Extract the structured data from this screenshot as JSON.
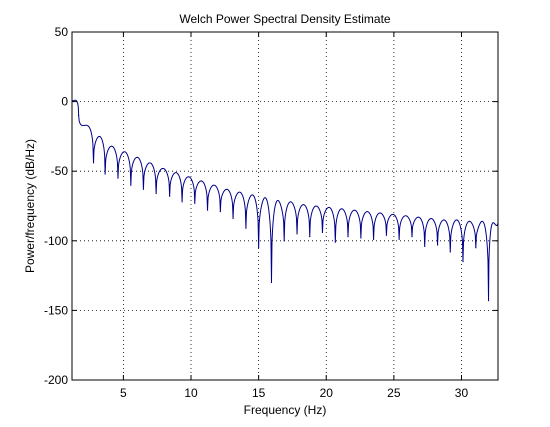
{
  "chart_data": {
    "type": "line",
    "title": "Welch Power Spectral Density Estimate",
    "xlabel": "Frequency (Hz)",
    "ylabel": "Power/frequency (dB/Hz)",
    "xlim": [
      1.2,
      32.7
    ],
    "ylim": [
      -200,
      50
    ],
    "grid": true,
    "x_ticks": [
      5,
      10,
      15,
      20,
      25,
      30
    ],
    "y_ticks": [
      50,
      0,
      -50,
      -100,
      -150,
      -200
    ],
    "series": [
      {
        "color": "#00008b",
        "lobes": [
          {
            "x_start": 1.2,
            "x_end": 1.69,
            "peak": 1
          },
          {
            "x_start": 1.69,
            "x_end": 2.79,
            "peak": -17
          },
          {
            "x_start": 2.79,
            "x_end": 3.65,
            "peak": -25
          },
          {
            "x_start": 3.65,
            "x_end": 4.6,
            "peak": -32
          },
          {
            "x_start": 4.6,
            "x_end": 5.55,
            "peak": -36
          },
          {
            "x_start": 5.55,
            "x_end": 6.48,
            "peak": -40
          },
          {
            "x_start": 6.48,
            "x_end": 7.42,
            "peak": -44
          },
          {
            "x_start": 7.42,
            "x_end": 8.42,
            "peak": -48
          },
          {
            "x_start": 8.42,
            "x_end": 9.34,
            "peak": -51
          },
          {
            "x_start": 9.34,
            "x_end": 10.28,
            "peak": -54
          },
          {
            "x_start": 10.28,
            "x_end": 11.22,
            "peak": -57
          },
          {
            "x_start": 11.22,
            "x_end": 12.17,
            "peak": -60
          },
          {
            "x_start": 12.17,
            "x_end": 13.11,
            "peak": -63
          },
          {
            "x_start": 13.11,
            "x_end": 14.06,
            "peak": -65
          },
          {
            "x_start": 14.06,
            "x_end": 15,
            "peak": -67
          },
          {
            "x_start": 15,
            "x_end": 15.95,
            "peak": -69
          },
          {
            "x_start": 15.95,
            "x_end": 16.89,
            "peak": -71
          },
          {
            "x_start": 16.89,
            "x_end": 17.84,
            "peak": -72
          },
          {
            "x_start": 17.84,
            "x_end": 18.78,
            "peak": -74
          },
          {
            "x_start": 18.78,
            "x_end": 19.72,
            "peak": -75
          },
          {
            "x_start": 19.72,
            "x_end": 20.67,
            "peak": -76
          },
          {
            "x_start": 20.67,
            "x_end": 21.61,
            "peak": -77
          },
          {
            "x_start": 21.61,
            "x_end": 22.56,
            "peak": -78
          },
          {
            "x_start": 22.56,
            "x_end": 23.5,
            "peak": -79
          },
          {
            "x_start": 23.5,
            "x_end": 24.45,
            "peak": -80
          },
          {
            "x_start": 24.45,
            "x_end": 25.39,
            "peak": -81
          },
          {
            "x_start": 25.39,
            "x_end": 26.34,
            "peak": -82
          },
          {
            "x_start": 26.34,
            "x_end": 27.28,
            "peak": -83
          },
          {
            "x_start": 27.28,
            "x_end": 28.23,
            "peak": -84
          },
          {
            "x_start": 28.23,
            "x_end": 29.17,
            "peak": -85
          },
          {
            "x_start": 29.17,
            "x_end": 30.11,
            "peak": -85
          },
          {
            "x_start": 30.11,
            "x_end": 31.06,
            "peak": -86
          },
          {
            "x_start": 31.06,
            "x_end": 32,
            "peak": -86
          },
          {
            "x_start": 32,
            "x_end": 32.7,
            "peak": -87
          }
        ],
        "nulls": [
          {
            "x": 1.69,
            "value": -10
          },
          {
            "x": 2.79,
            "value": -44
          },
          {
            "x": 3.65,
            "value": -52
          },
          {
            "x": 4.6,
            "value": -55
          },
          {
            "x": 5.55,
            "value": -60
          },
          {
            "x": 6.48,
            "value": -63
          },
          {
            "x": 7.42,
            "value": -66
          },
          {
            "x": 8.42,
            "value": -68
          },
          {
            "x": 9.34,
            "value": -72
          },
          {
            "x": 10.28,
            "value": -73
          },
          {
            "x": 11.22,
            "value": -78
          },
          {
            "x": 12.17,
            "value": -79
          },
          {
            "x": 13.11,
            "value": -84
          },
          {
            "x": 14.06,
            "value": -91
          },
          {
            "x": 15,
            "value": -105
          },
          {
            "x": 15.95,
            "value": -130
          },
          {
            "x": 16.89,
            "value": -100
          },
          {
            "x": 17.84,
            "value": -95
          },
          {
            "x": 18.78,
            "value": -97
          },
          {
            "x": 19.72,
            "value": -94
          },
          {
            "x": 20.67,
            "value": -101
          },
          {
            "x": 21.61,
            "value": -97
          },
          {
            "x": 22.56,
            "value": -98
          },
          {
            "x": 23.5,
            "value": -99
          },
          {
            "x": 24.45,
            "value": -96
          },
          {
            "x": 25.39,
            "value": -99
          },
          {
            "x": 26.34,
            "value": -97
          },
          {
            "x": 27.28,
            "value": -104
          },
          {
            "x": 28.23,
            "value": -103
          },
          {
            "x": 29.17,
            "value": -108
          },
          {
            "x": 30.11,
            "value": -115
          },
          {
            "x": 31.06,
            "value": -105
          },
          {
            "x": 32,
            "value": -143
          }
        ]
      }
    ]
  }
}
